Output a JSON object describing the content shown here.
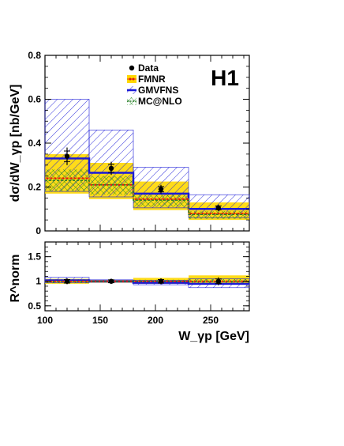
{
  "chart_data": [
    {
      "type": "histogram",
      "experiment_label": "H1",
      "ylabel": "dσ/dW_γp [nb/GeV]",
      "xlim": [
        100,
        285
      ],
      "ylim": [
        0,
        0.8
      ],
      "yticks": [
        "0",
        "0.2",
        "0.4",
        "0.6",
        "0.8"
      ],
      "bin_edges": [
        100,
        140,
        180,
        230,
        285
      ],
      "legend": {
        "placement": "top-right",
        "entries": [
          "Data",
          "FMNR",
          "GMVFNS",
          "MC@NLO"
        ]
      },
      "series": [
        {
          "name": "Data",
          "x": [
            120,
            160,
            205,
            257
          ],
          "values": [
            0.34,
            0.285,
            0.19,
            0.105
          ],
          "errors": [
            0.04,
            0.03,
            0.02,
            0.015
          ]
        },
        {
          "name": "FMNR",
          "central": [
            0.24,
            0.21,
            0.145,
            0.08
          ],
          "band_low": [
            0.17,
            0.145,
            0.095,
            0.05
          ],
          "band_high": [
            0.35,
            0.31,
            0.225,
            0.13
          ]
        },
        {
          "name": "GMVFNS",
          "central": [
            0.33,
            0.265,
            0.17,
            0.1
          ],
          "band_low": [
            0.18,
            0.155,
            0.105,
            0.06
          ],
          "band_high": [
            0.6,
            0.46,
            0.29,
            0.165
          ]
        },
        {
          "name": "MC@NLO",
          "central": [
            0.23,
            0.21,
            0.14,
            0.075
          ],
          "band_low": [
            0.18,
            0.165,
            0.11,
            0.055
          ],
          "band_high": [
            0.28,
            0.25,
            0.165,
            0.09
          ]
        }
      ]
    },
    {
      "type": "histogram",
      "ylabel": "R^norm",
      "xlabel": "W_γp [GeV]",
      "xlim": [
        100,
        285
      ],
      "ylim": [
        0.4,
        1.8
      ],
      "yticks": [
        "0.5",
        "1",
        "1.5"
      ],
      "xticks": [
        "100",
        "150",
        "200",
        "250"
      ],
      "bin_edges": [
        100,
        140,
        180,
        230,
        285
      ],
      "series": [
        {
          "name": "Data",
          "x": [
            120,
            160,
            205,
            257
          ],
          "values": [
            1.0,
            1.0,
            1.0,
            1.0
          ],
          "errors": [
            0.06,
            0.05,
            0.06,
            0.08
          ]
        },
        {
          "name": "FMNR",
          "central": [
            1.0,
            1.0,
            1.0,
            1.0
          ],
          "band_low": [
            0.95,
            0.97,
            0.95,
            0.93
          ],
          "band_high": [
            1.05,
            1.03,
            1.07,
            1.12
          ]
        },
        {
          "name": "GMVFNS",
          "central": [
            1.02,
            1.0,
            0.97,
            0.95
          ],
          "band_low": [
            0.97,
            0.98,
            0.93,
            0.87
          ],
          "band_high": [
            1.08,
            1.03,
            1.02,
            1.05
          ]
        },
        {
          "name": "MC@NLO",
          "central": [
            1.0,
            1.0,
            1.0,
            1.0
          ],
          "band_low": [
            0.96,
            0.98,
            0.97,
            0.95
          ],
          "band_high": [
            1.04,
            1.02,
            1.03,
            1.05
          ]
        }
      ]
    }
  ],
  "colors": {
    "fmnr_band": "#ffd700",
    "fmnr_line": "#e87900",
    "fmnr_dots": "#e81010",
    "gmvfns_band": "#1a1ad8",
    "gmvfns_line": "#1a1ad8",
    "mcnlo_band": "#1f8a1f",
    "mcnlo_line": "#2a7a2a",
    "data": "#000000"
  }
}
